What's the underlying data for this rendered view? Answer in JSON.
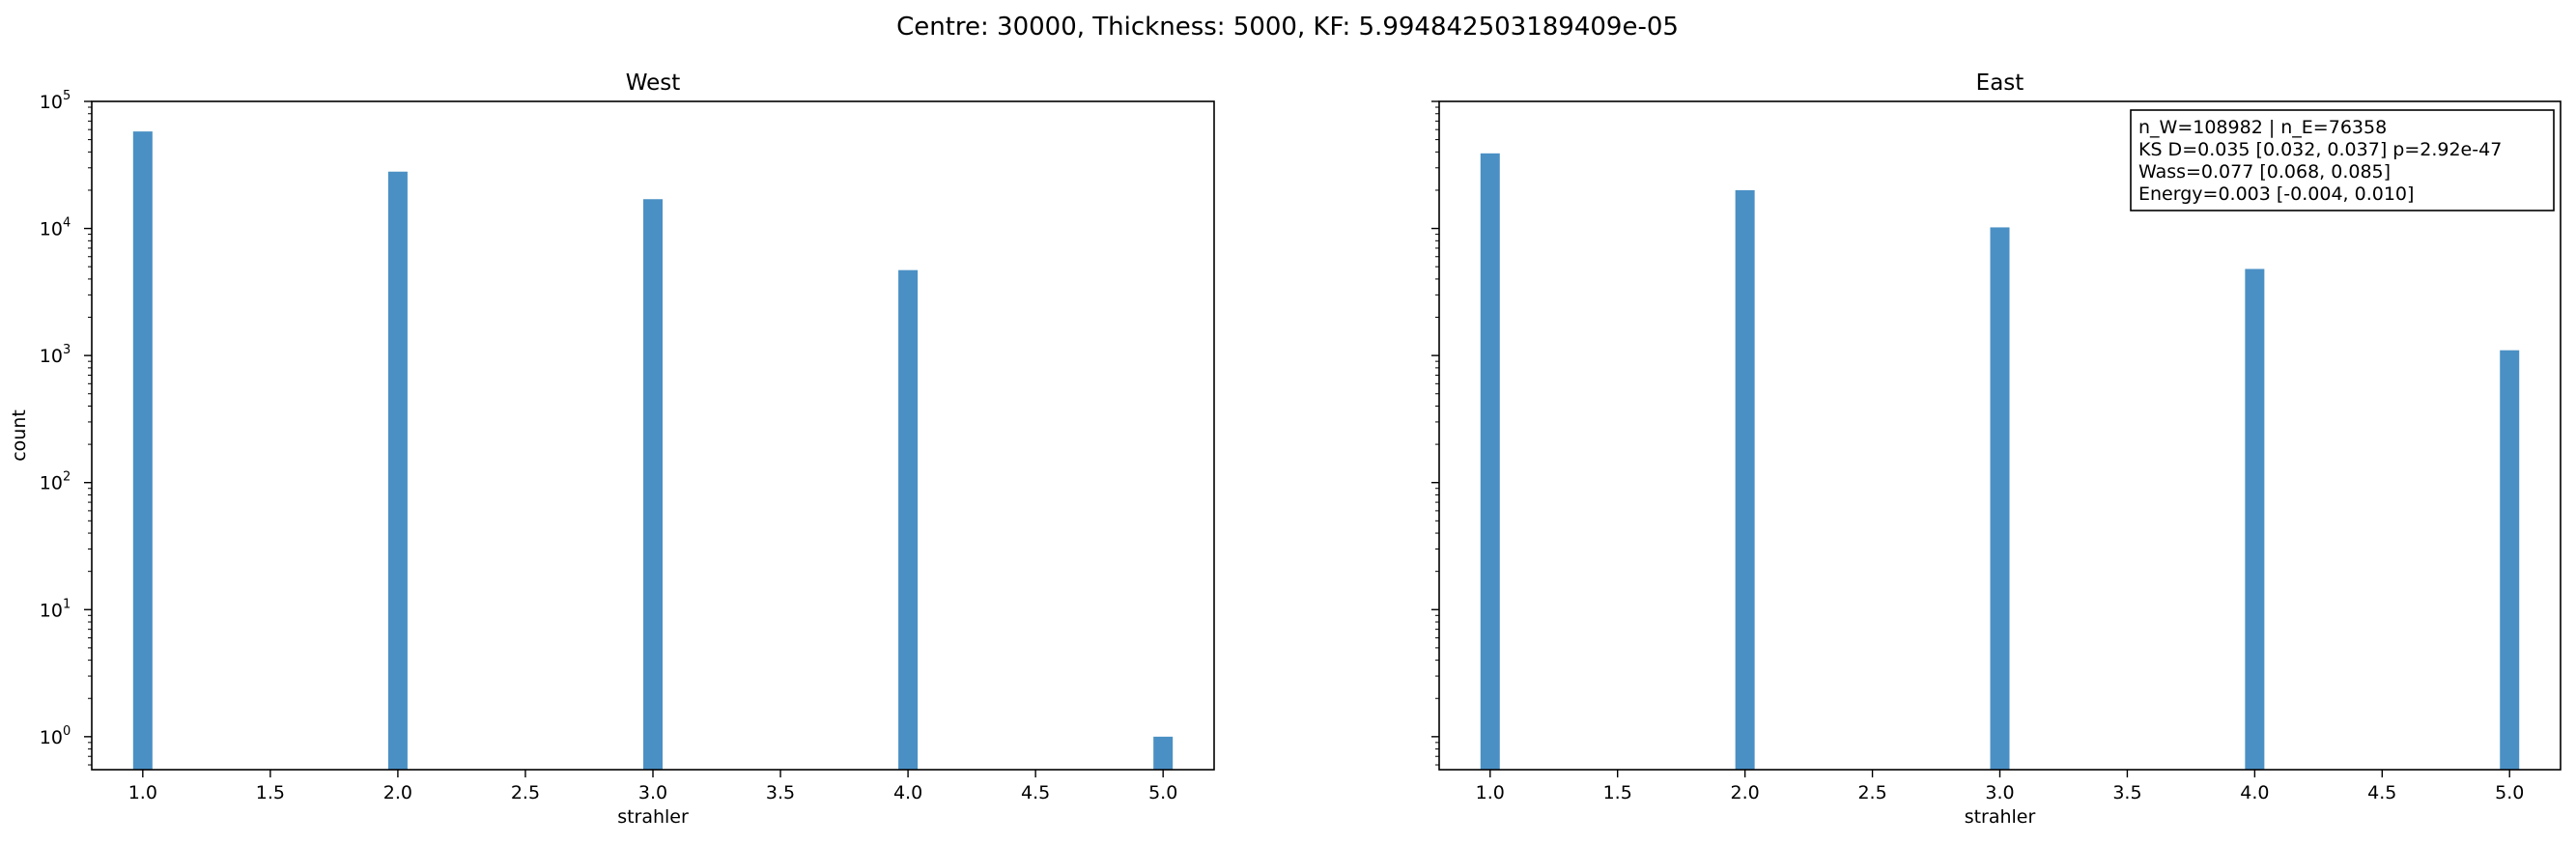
{
  "figure": {
    "suptitle": "Centre: 30000, Thickness: 5000, KF: 5.994842503189409e-05"
  },
  "chart_data": [
    {
      "type": "bar",
      "title": "West",
      "xlabel": "strahler",
      "ylabel": "count",
      "yscale": "log",
      "ylim": [
        0.55,
        100000
      ],
      "xlim": [
        0.8,
        5.2
      ],
      "xticks": [
        1.0,
        1.5,
        2.0,
        2.5,
        3.0,
        3.5,
        4.0,
        4.5,
        5.0
      ],
      "xtick_labels": [
        "1.0",
        "1.5",
        "2.0",
        "2.5",
        "3.0",
        "3.5",
        "4.0",
        "4.5",
        "5.0"
      ],
      "ytick_labels": [
        "10^0",
        "10^1",
        "10^2",
        "10^3",
        "10^4",
        "10^5"
      ],
      "x": [
        1,
        2,
        3,
        4,
        5
      ],
      "values": [
        58000,
        28000,
        17000,
        4700,
        1
      ],
      "color": "#4a90c4",
      "grid": false
    },
    {
      "type": "bar",
      "title": "East",
      "xlabel": "strahler",
      "ylabel": "",
      "yscale": "log",
      "ylim": [
        0.55,
        100000
      ],
      "xlim": [
        0.8,
        5.2
      ],
      "xticks": [
        1.0,
        1.5,
        2.0,
        2.5,
        3.0,
        3.5,
        4.0,
        4.5,
        5.0
      ],
      "xtick_labels": [
        "1.0",
        "1.5",
        "2.0",
        "2.5",
        "3.0",
        "3.5",
        "4.0",
        "4.5",
        "5.0"
      ],
      "ytick_labels": [],
      "x": [
        1,
        2,
        3,
        4,
        5
      ],
      "values": [
        39000,
        20000,
        10200,
        4800,
        1100
      ],
      "color": "#4a90c4",
      "grid": false,
      "annotation": {
        "position": "top-right",
        "lines": [
          "n_W=108982 | n_E=76358",
          "KS D=0.035 [0.032, 0.037]  p=2.92e-47",
          "Wass=0.077 [0.068, 0.085]",
          "Energy=0.003 [-0.004, 0.010]"
        ]
      }
    }
  ]
}
